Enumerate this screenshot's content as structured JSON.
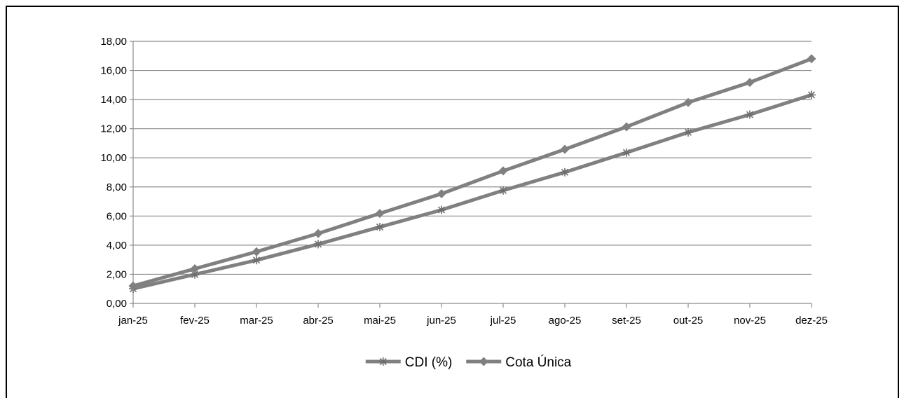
{
  "chart_data": {
    "type": "line",
    "categories": [
      "jan-25",
      "fev-25",
      "mar-25",
      "abr-25",
      "mai-25",
      "jun-25",
      "jul-25",
      "ago-25",
      "set-25",
      "out-25",
      "nov-25",
      "dez-25"
    ],
    "series": [
      {
        "name": "CDI (%)",
        "marker": "asterisk",
        "color": "#808080",
        "values": [
          1.01,
          1.99,
          2.97,
          4.07,
          5.25,
          6.42,
          7.76,
          9.01,
          10.36,
          11.75,
          12.97,
          14.32
        ]
      },
      {
        "name": "Cota Única",
        "marker": "diamond",
        "color": "#808080",
        "values": [
          1.2,
          2.38,
          3.55,
          4.8,
          6.18,
          7.53,
          9.1,
          10.58,
          12.13,
          13.8,
          15.18,
          16.8
        ]
      }
    ],
    "y_ticks": [
      "0,00",
      "2,00",
      "4,00",
      "6,00",
      "8,00",
      "10,00",
      "12,00",
      "14,00",
      "16,00",
      "18,00"
    ],
    "ylim": [
      0,
      18
    ],
    "grid": true,
    "legend_position": "bottom",
    "title": "",
    "xlabel": "",
    "ylabel": ""
  }
}
